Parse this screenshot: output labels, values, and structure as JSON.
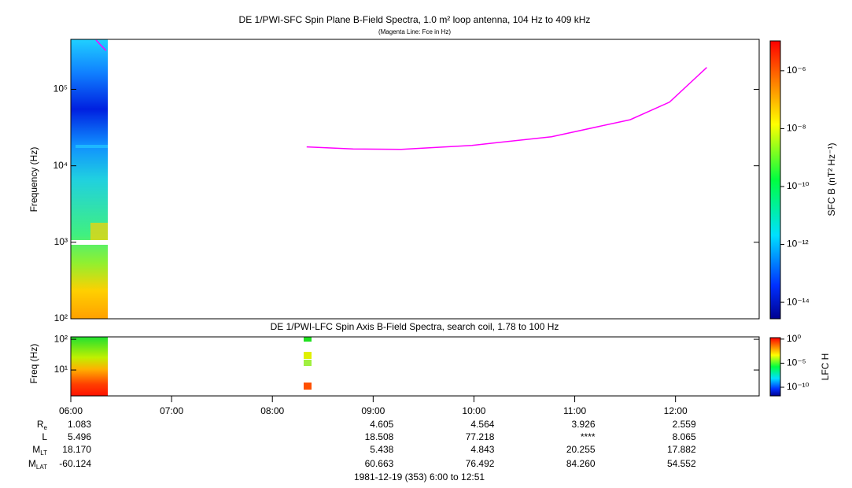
{
  "chart_data": [
    {
      "type": "spectrogram",
      "title": "DE 1/PWI-SFC  Spin Plane B-Field Spectra, 1.0 m² loop antenna, 104 Hz to 409 kHz",
      "subtitle": "(Magenta Line: Fce in Hz)",
      "ylabel": "Frequency (Hz)",
      "log_y": true,
      "xlim": [
        6,
        12.83
      ],
      "ylim": [
        100,
        450000
      ],
      "yticks": [
        {
          "value": 100,
          "label": "10²"
        },
        {
          "value": 1000,
          "label": "10³"
        },
        {
          "value": 10000,
          "label": "10⁴"
        },
        {
          "value": 100000,
          "label": "10⁵"
        }
      ],
      "series": [
        {
          "color": "#ff00ff",
          "x": [
            6.25,
            6.35,
            null,
            8.34,
            8.8,
            9.28,
            9.98,
            10.77,
            11.55,
            11.94,
            12.31
          ],
          "values": [
            440000,
            320000,
            null,
            17700,
            16600,
            16400,
            18500,
            24000,
            40000,
            68000,
            193000
          ]
        }
      ],
      "colorbar": {
        "label": "SFC B (nT² Hz⁻¹)",
        "log": true,
        "clim": [
          2.7e-15,
          1.07e-05
        ],
        "ticks": [
          {
            "value": 1e-06,
            "label": "10⁻⁶"
          },
          {
            "value": 1e-08,
            "label": "10⁻⁸"
          },
          {
            "value": 1e-10,
            "label": "10⁻¹⁰"
          },
          {
            "value": 1e-12,
            "label": "10⁻¹²"
          },
          {
            "value": 1e-14,
            "label": "10⁻¹⁴"
          }
        ]
      }
    },
    {
      "type": "spectrogram",
      "title": "DE 1/PWI-LFC  Spin Axis B-Field Spectra, search coil, 1.78 to 100 Hz",
      "ylabel": "Freq (Hz)",
      "log_y": true,
      "xlim": [
        6,
        12.83
      ],
      "ylim": [
        1.43,
        120
      ],
      "yticks": [
        {
          "value": 10,
          "label": "10¹"
        },
        {
          "value": 100,
          "label": "10²"
        }
      ],
      "xticks": [
        {
          "value": 6,
          "label": "06:00"
        },
        {
          "value": 7,
          "label": "07:00"
        },
        {
          "value": 8,
          "label": "08:00"
        },
        {
          "value": 9,
          "label": "09:00"
        },
        {
          "value": 10,
          "label": "10:00"
        },
        {
          "value": 11,
          "label": "11:00"
        },
        {
          "value": 12,
          "label": "12:00"
        }
      ],
      "colorbar": {
        "label": "LFC H",
        "log": true,
        "clim": [
          1.6e-12,
          2
        ],
        "ticks": [
          {
            "value": 1,
            "label": "10⁰"
          },
          {
            "value": 1e-05,
            "label": "10⁻⁵"
          },
          {
            "value": 1e-10,
            "label": "10⁻¹⁰"
          }
        ]
      }
    }
  ],
  "ephemeris": {
    "rows": [
      {
        "label": "R",
        "sub": "e",
        "values": [
          "1.083",
          null,
          null,
          "4.605",
          "4.564",
          "3.926",
          "2.559"
        ]
      },
      {
        "label": "L",
        "values": [
          "5.496",
          null,
          null,
          "18.508",
          "77.218",
          "****",
          "8.065"
        ]
      },
      {
        "label": "M",
        "sub": "LT",
        "values": [
          "18.170",
          null,
          null,
          "5.438",
          "4.843",
          "20.255",
          "17.882"
        ]
      },
      {
        "label": "M",
        "sub": "LAT",
        "values": [
          "-60.124",
          null,
          null,
          "60.663",
          "76.492",
          "84.260",
          "54.552"
        ]
      }
    ],
    "footer": "1981-12-19 (353) 6:00 to 12:51"
  }
}
